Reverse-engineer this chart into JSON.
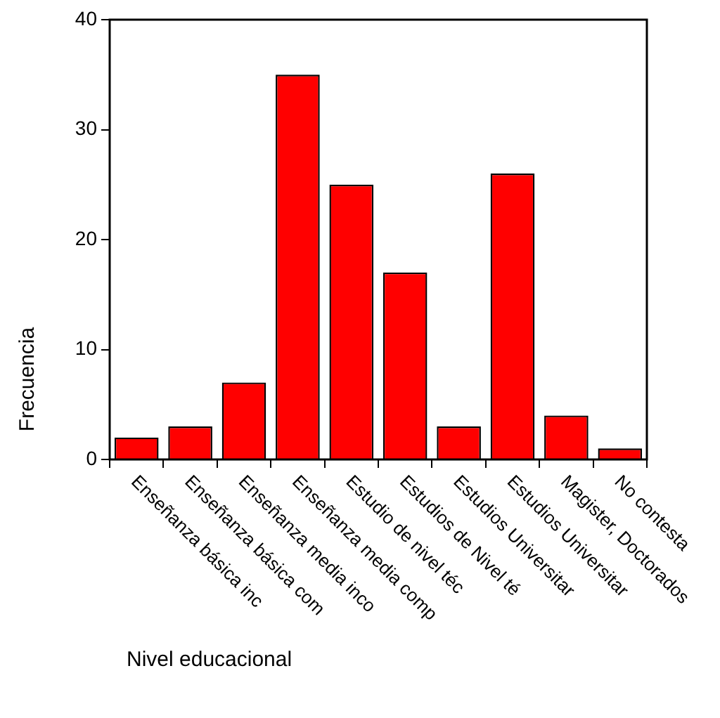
{
  "chart_data": {
    "type": "bar",
    "xlabel": "Nivel educacional",
    "ylabel": "Frecuencia",
    "categories": [
      "Enseñanza básica inc",
      "Enseñanza básica com",
      "Enseñanza media inco",
      "Enseñanza media comp",
      "Estudio de nivel téc",
      "Estudios de Nivel té",
      "Estudios Universitar",
      "Estudios Universitar",
      "Magister, Doctorados",
      "No contesta"
    ],
    "values": [
      2,
      3,
      7,
      35,
      25,
      17,
      3,
      26,
      4,
      1
    ],
    "color": "#ff0000",
    "ylim": [
      0,
      40
    ],
    "yticks": [
      0,
      10,
      20,
      30,
      40
    ],
    "grid": false,
    "legend": false
  }
}
